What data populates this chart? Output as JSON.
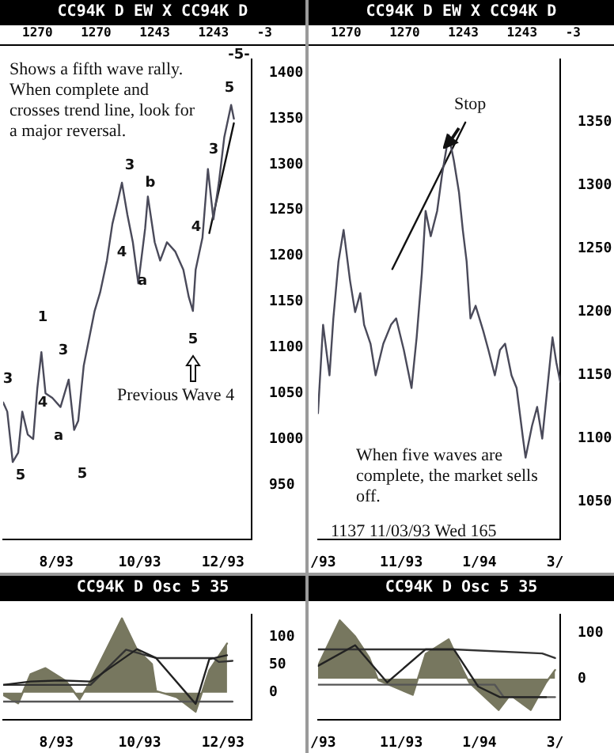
{
  "chart_data": [
    {
      "type": "line",
      "title": "CC94K D EW X CC94K D",
      "subtitle": "1270 1270 1243 1243 -3",
      "xlim": [
        "1993-06-23",
        "1993-12-22"
      ],
      "xticks": [
        {
          "value": "1993-08-01",
          "label": "8/93"
        },
        {
          "value": "1993-10-01",
          "label": "10/93"
        },
        {
          "value": "1993-12-01",
          "label": "12/93"
        }
      ],
      "ylim": [
        890,
        1415
      ],
      "yticks": [
        950,
        1000,
        1050,
        1100,
        1150,
        1200,
        1250,
        1300,
        1350,
        1400
      ],
      "marker": "none",
      "grid": false,
      "legend": false,
      "series": [
        {
          "color": "#4a4a5a",
          "x": [
            "1993-06-23",
            "1993-06-26",
            "1993-06-30",
            "1993-07-04",
            "1993-07-07",
            "1993-07-11",
            "1993-07-15",
            "1993-07-18",
            "1993-07-21",
            "1993-07-24",
            "1993-07-29",
            "1993-08-04",
            "1993-08-10",
            "1993-08-14",
            "1993-08-17",
            "1993-08-21",
            "1993-08-25",
            "1993-08-29",
            "1993-09-02",
            "1993-09-07",
            "1993-09-11",
            "1993-09-15",
            "1993-09-18",
            "1993-09-22",
            "1993-09-26",
            "1993-09-30",
            "1993-10-05",
            "1993-10-07",
            "1993-10-12",
            "1993-10-16",
            "1993-10-21",
            "1993-10-27",
            "1993-11-02",
            "1993-11-06",
            "1993-11-09",
            "1993-11-11",
            "1993-11-16",
            "1993-11-20",
            "1993-11-24",
            "1993-11-28",
            "1993-12-02",
            "1993-12-07",
            "1993-12-09"
          ],
          "values": [
            1040,
            1030,
            975,
            985,
            1030,
            1005,
            1000,
            1055,
            1095,
            1050,
            1045,
            1035,
            1065,
            1010,
            1020,
            1080,
            1110,
            1140,
            1160,
            1195,
            1235,
            1260,
            1280,
            1245,
            1215,
            1170,
            1230,
            1265,
            1215,
            1195,
            1215,
            1205,
            1185,
            1155,
            1140,
            1185,
            1220,
            1295,
            1240,
            1280,
            1330,
            1365,
            1350
          ]
        },
        {
          "type": "line",
          "color": "#111111",
          "x": [
            "1993-11-21",
            "1993-12-09"
          ],
          "values": [
            1225,
            1345
          ]
        }
      ],
      "annotations": [
        "Shows a fifth wave rally. When complete and crosses trend line, look for a major reversal.",
        "-5-",
        "3",
        "5",
        "1",
        "4",
        "a",
        "3",
        "5",
        "4",
        "3",
        "b",
        "a",
        "5",
        "3",
        "4",
        "5",
        "Previous Wave 4"
      ]
    },
    {
      "type": "line",
      "title": "CC94K D EW X CC94K D",
      "subtitle": "1270 1270 1243 1243 -3",
      "xlim": [
        "1993-08-28",
        "1994-03-05"
      ],
      "xticks": [
        {
          "value": "1993-09-01",
          "label": "/93"
        },
        {
          "value": "1993-11-01",
          "label": "11/93"
        },
        {
          "value": "1994-01-01",
          "label": "1/94"
        },
        {
          "value": "1994-03-01",
          "label": "3/"
        }
      ],
      "ylim": [
        1020,
        1400
      ],
      "yticks": [
        1050,
        1100,
        1150,
        1200,
        1250,
        1300,
        1350
      ],
      "marker": "none",
      "grid": false,
      "legend": false,
      "series": [
        {
          "color": "#4a4a5a",
          "x": [
            "1993-08-28",
            "1993-09-01",
            "1993-09-06",
            "1993-09-09",
            "1993-09-13",
            "1993-09-17",
            "1993-09-22",
            "1993-09-26",
            "1993-09-30",
            "1993-10-03",
            "1993-10-08",
            "1993-10-12",
            "1993-10-18",
            "1993-10-24",
            "1993-10-28",
            "1993-11-03",
            "1993-11-09",
            "1993-11-13",
            "1993-11-17",
            "1993-11-20",
            "1993-11-24",
            "1993-11-29",
            "1993-12-03",
            "1993-12-08",
            "1993-12-12",
            "1993-12-16",
            "1993-12-19",
            "1993-12-22",
            "1993-12-25",
            "1993-12-29",
            "1994-01-04",
            "1994-01-08",
            "1994-01-13",
            "1994-01-17",
            "1994-01-21",
            "1994-01-26",
            "1994-01-30",
            "1994-02-04",
            "1994-02-06",
            "1994-02-11",
            "1994-02-15",
            "1994-02-19",
            "1994-02-24",
            "1994-02-27",
            "1994-03-02",
            "1994-03-05"
          ],
          "values": [
            1120,
            1190,
            1150,
            1195,
            1240,
            1265,
            1225,
            1200,
            1215,
            1190,
            1175,
            1150,
            1175,
            1190,
            1195,
            1170,
            1140,
            1180,
            1230,
            1280,
            1260,
            1280,
            1310,
            1340,
            1320,
            1295,
            1265,
            1240,
            1195,
            1205,
            1185,
            1170,
            1150,
            1170,
            1175,
            1150,
            1140,
            1100,
            1085,
            1110,
            1125,
            1100,
            1150,
            1180,
            1160,
            1145
          ]
        },
        {
          "type": "line",
          "color": "#111111",
          "x": [
            "1993-10-25",
            "1993-12-21"
          ],
          "values": [
            1234,
            1350
          ]
        }
      ],
      "annotations": [
        "Stop",
        "When five waves are complete, the market sells off.",
        "1137 11/03/93 Wed 165"
      ]
    },
    {
      "type": "area",
      "title": "CC94K D Osc 5 35",
      "xlim": [
        "1993-06-23",
        "1993-12-22"
      ],
      "xticks": [
        {
          "value": "1993-08-01",
          "label": "8/93"
        },
        {
          "value": "1993-10-01",
          "label": "10/93"
        },
        {
          "value": "1993-12-01",
          "label": "12/93"
        }
      ],
      "ylim": [
        -49,
        140
      ],
      "yticks": [
        0,
        50,
        100
      ],
      "marker": "none",
      "grid": false,
      "legend": false,
      "series": [
        {
          "color": "#77775f",
          "x": [
            "1993-06-23",
            "1993-07-04",
            "1993-07-13",
            "1993-07-24",
            "1993-08-08",
            "1993-08-18",
            "1993-08-26",
            "1993-09-08",
            "1993-09-18",
            "1993-09-29",
            "1993-10-10",
            "1993-10-13",
            "1993-10-28",
            "1993-11-11",
            "1993-11-21",
            "1993-12-04"
          ],
          "values": [
            -4,
            -19,
            33,
            44,
            21,
            -12,
            21,
            84,
            133,
            77,
            51,
            3,
            -8,
            -34,
            40,
            88
          ]
        },
        {
          "type": "line",
          "color": "#222222",
          "x": [
            "1993-06-23",
            "1993-07-13",
            "1993-08-04",
            "1993-08-26",
            "1993-09-29",
            "1993-10-13",
            "1993-11-11",
            "1993-11-21",
            "1993-12-04"
          ],
          "values": [
            14,
            20,
            22,
            20,
            78,
            62,
            -20,
            60,
            67
          ]
        },
        {
          "type": "line",
          "color": "#333333",
          "x": [
            "1993-06-23",
            "1993-08-26",
            "1993-09-21",
            "1993-10-13",
            "1993-11-24",
            "1993-11-28",
            "1993-12-08"
          ],
          "values": [
            14,
            14,
            77,
            62,
            62,
            55,
            57
          ]
        },
        {
          "type": "line",
          "color": "#555555",
          "x": [
            "1993-06-23",
            "1993-12-08"
          ],
          "values": [
            -16,
            -16
          ]
        }
      ]
    },
    {
      "type": "area",
      "title": "CC94K D Osc 5 35",
      "xlim": [
        "1993-08-28",
        "1994-03-05"
      ],
      "xticks": [
        {
          "value": "1993-09-01",
          "label": "/93"
        },
        {
          "value": "1993-11-01",
          "label": "11/93"
        },
        {
          "value": "1994-01-01",
          "label": "1/94"
        },
        {
          "value": "1994-03-01",
          "label": "3/"
        }
      ],
      "ylim": [
        -90,
        140
      ],
      "yticks": [
        0,
        100
      ],
      "marker": "none",
      "grid": false,
      "legend": false,
      "series": [
        {
          "color": "#77775f",
          "x": [
            "1993-08-28",
            "1993-09-14",
            "1993-09-26",
            "1993-10-07",
            "1993-10-14",
            "1993-11-10",
            "1993-11-20",
            "1993-12-08",
            "1993-12-19",
            "1993-12-24",
            "1994-01-16",
            "1994-01-25",
            "1994-02-10",
            "1994-02-22",
            "1994-03-01"
          ],
          "values": [
            28,
            127,
            92,
            46,
            -3,
            -35,
            54,
            86,
            19,
            -8,
            -68,
            -35,
            -68,
            -8,
            19
          ]
        },
        {
          "type": "line",
          "color": "#222222",
          "x": [
            "1993-08-28",
            "1993-09-26",
            "1993-10-21",
            "1993-11-20",
            "1993-12-12",
            "1993-12-31",
            "1994-01-17",
            "1994-02-22"
          ],
          "values": [
            28,
            73,
            -8,
            64,
            64,
            -17,
            -40,
            -40
          ]
        },
        {
          "type": "line",
          "color": "#333333",
          "x": [
            "1993-08-28",
            "1993-12-12",
            "1994-02-19",
            "1994-03-01"
          ],
          "values": [
            64,
            64,
            55,
            45
          ]
        },
        {
          "type": "line",
          "color": "#555555",
          "x": [
            "1993-08-28",
            "1994-01-13",
            "1994-01-20",
            "1994-03-01"
          ],
          "values": [
            -13,
            -13,
            -40,
            -40
          ]
        }
      ]
    }
  ]
}
